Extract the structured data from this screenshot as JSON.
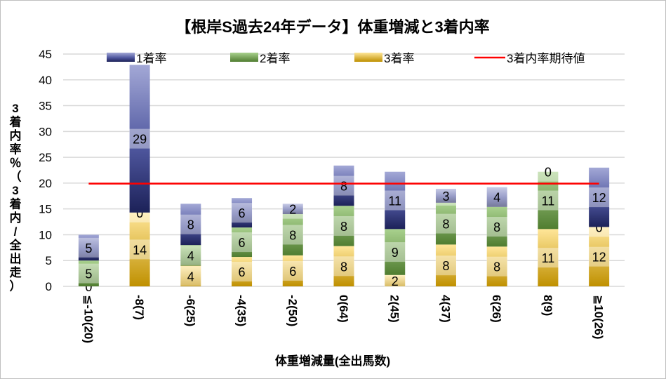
{
  "chart_data": {
    "type": "bar",
    "stacked": true,
    "title": "【根岸S過去24年データ】体重増減と3着内率",
    "xlabel": "体重増減量(全出馬数)",
    "ylabel": "3着内率％（3着内/全出走）",
    "ylim": [
      0,
      45
    ],
    "yticks": [
      0,
      5,
      10,
      15,
      20,
      25,
      30,
      35,
      40,
      45
    ],
    "grid": true,
    "legend_position": "top",
    "categories": [
      "≦-10(20)",
      "-8(7)",
      "-6(25)",
      "-4(35)",
      "-2(50)",
      "0(64)",
      "2(45)",
      "4(37)",
      "6(26)",
      "8(9)",
      "≧10(26)"
    ],
    "series": [
      {
        "name": "3着率",
        "values": [
          0,
          14.3,
          4.0,
          5.7,
          6.0,
          7.8,
          2.2,
          8.1,
          7.7,
          11.1,
          11.5
        ],
        "labels": [
          "0",
          "14",
          "4",
          "6",
          "6",
          "8",
          "2",
          "8",
          "8",
          "11",
          "12"
        ]
      },
      {
        "name": "2着率",
        "values": [
          5.0,
          0,
          4.0,
          5.7,
          8.0,
          7.8,
          8.9,
          8.1,
          7.7,
          11.1,
          0
        ],
        "labels": [
          "5",
          "0",
          "4",
          "6",
          "8",
          "8",
          "9",
          "8",
          "8",
          "11",
          "0"
        ]
      },
      {
        "name": "1着率",
        "values": [
          5.0,
          28.6,
          8.0,
          5.7,
          2.0,
          7.8,
          11.1,
          2.7,
          3.8,
          0,
          11.5
        ],
        "labels": [
          "5",
          "29",
          "8",
          "6",
          "2",
          "8",
          "11",
          "3",
          "4",
          "0",
          "12"
        ]
      }
    ],
    "reference_line": {
      "name": "3着内率期待値",
      "value": 19.9,
      "color": "#ff0000"
    },
    "legend": [
      "1着率",
      "2着率",
      "3着率",
      "3着内率期待値"
    ]
  }
}
